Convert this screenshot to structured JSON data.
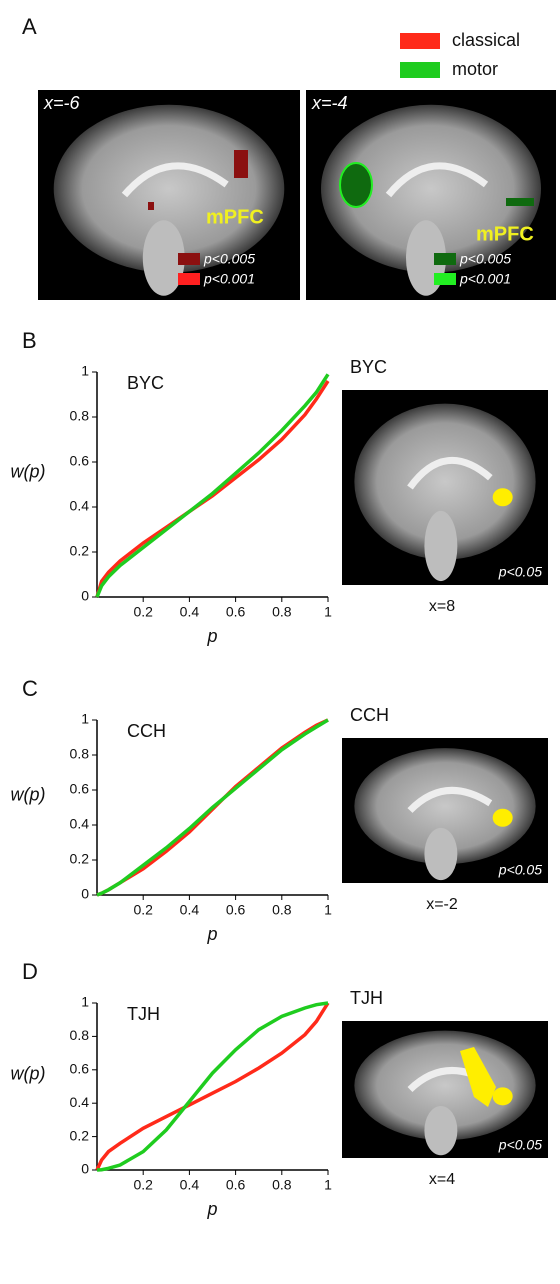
{
  "panel_a": {
    "label": "A",
    "legend": [
      {
        "name": "classical",
        "color": "#ff2a1a"
      },
      {
        "name": "motor",
        "color": "#1fcc1f"
      }
    ],
    "images": [
      {
        "slice": "x=-6",
        "region": "mPFC",
        "thresholds": [
          {
            "text": "p<0.005",
            "color": "#8b1010"
          },
          {
            "text": "p<0.001",
            "color": "#ff2020"
          }
        ]
      },
      {
        "slice": "x=-4",
        "region": "mPFC",
        "thresholds": [
          {
            "text": "p<0.005",
            "color": "#0f6a0f"
          },
          {
            "text": "p<0.001",
            "color": "#22ee22"
          }
        ]
      }
    ]
  },
  "chart_data": [
    {
      "type": "line",
      "panel": "B",
      "title": "BYC",
      "x_label": "p",
      "y_label": "w(p)",
      "xlim": [
        0,
        1
      ],
      "ylim": [
        0,
        1
      ],
      "xticks": [
        0.2,
        0.4,
        0.6,
        0.8,
        1
      ],
      "yticks": [
        0,
        0.2,
        0.4,
        0.6,
        0.8,
        1
      ],
      "x": [
        0,
        0.02,
        0.05,
        0.1,
        0.2,
        0.3,
        0.4,
        0.5,
        0.6,
        0.7,
        0.8,
        0.9,
        0.95,
        1
      ],
      "series": [
        {
          "name": "classical",
          "color": "#ff2a1a",
          "values": [
            0,
            0.07,
            0.11,
            0.16,
            0.24,
            0.31,
            0.38,
            0.45,
            0.53,
            0.61,
            0.7,
            0.81,
            0.88,
            0.96
          ]
        },
        {
          "name": "motor",
          "color": "#1fcc1f",
          "values": [
            0,
            0.05,
            0.09,
            0.14,
            0.22,
            0.3,
            0.38,
            0.46,
            0.55,
            0.64,
            0.74,
            0.85,
            0.91,
            0.99
          ]
        }
      ]
    },
    {
      "type": "line",
      "panel": "C",
      "title": "CCH",
      "x_label": "p",
      "y_label": "w(p)",
      "xlim": [
        0,
        1
      ],
      "ylim": [
        0,
        1
      ],
      "xticks": [
        0.2,
        0.4,
        0.6,
        0.8,
        1
      ],
      "yticks": [
        0,
        0.2,
        0.4,
        0.6,
        0.8,
        1
      ],
      "x": [
        0,
        0.02,
        0.05,
        0.1,
        0.2,
        0.3,
        0.4,
        0.5,
        0.6,
        0.7,
        0.8,
        0.9,
        0.95,
        1
      ],
      "series": [
        {
          "name": "classical",
          "color": "#ff2a1a",
          "values": [
            0,
            0.01,
            0.03,
            0.07,
            0.15,
            0.25,
            0.36,
            0.49,
            0.62,
            0.73,
            0.84,
            0.93,
            0.97,
            1
          ]
        },
        {
          "name": "motor",
          "color": "#1fcc1f",
          "values": [
            0,
            0.01,
            0.03,
            0.07,
            0.17,
            0.27,
            0.38,
            0.5,
            0.61,
            0.72,
            0.83,
            0.92,
            0.96,
            1
          ]
        }
      ]
    },
    {
      "type": "line",
      "panel": "D",
      "title": "TJH",
      "x_label": "p",
      "y_label": "w(p)",
      "xlim": [
        0,
        1
      ],
      "ylim": [
        0,
        1
      ],
      "xticks": [
        0.2,
        0.4,
        0.6,
        0.8,
        1
      ],
      "yticks": [
        0,
        0.2,
        0.4,
        0.6,
        0.8,
        1
      ],
      "x": [
        0,
        0.02,
        0.05,
        0.1,
        0.2,
        0.3,
        0.4,
        0.5,
        0.6,
        0.7,
        0.8,
        0.9,
        0.95,
        1
      ],
      "series": [
        {
          "name": "classical",
          "color": "#ff2a1a",
          "values": [
            0,
            0.06,
            0.11,
            0.16,
            0.25,
            0.32,
            0.39,
            0.46,
            0.53,
            0.61,
            0.7,
            0.81,
            0.89,
            1
          ]
        },
        {
          "name": "motor",
          "color": "#1fcc1f",
          "values": [
            0,
            0.002,
            0.01,
            0.03,
            0.11,
            0.24,
            0.41,
            0.58,
            0.72,
            0.84,
            0.92,
            0.97,
            0.99,
            1
          ]
        }
      ]
    }
  ],
  "brain_images": [
    {
      "title": "BYC",
      "threshold": "p<0.05",
      "slice": "x=8"
    },
    {
      "title": "CCH",
      "threshold": "p<0.05",
      "slice": "x=-2"
    },
    {
      "title": "TJH",
      "threshold": "p<0.05",
      "slice": "x=4"
    }
  ]
}
